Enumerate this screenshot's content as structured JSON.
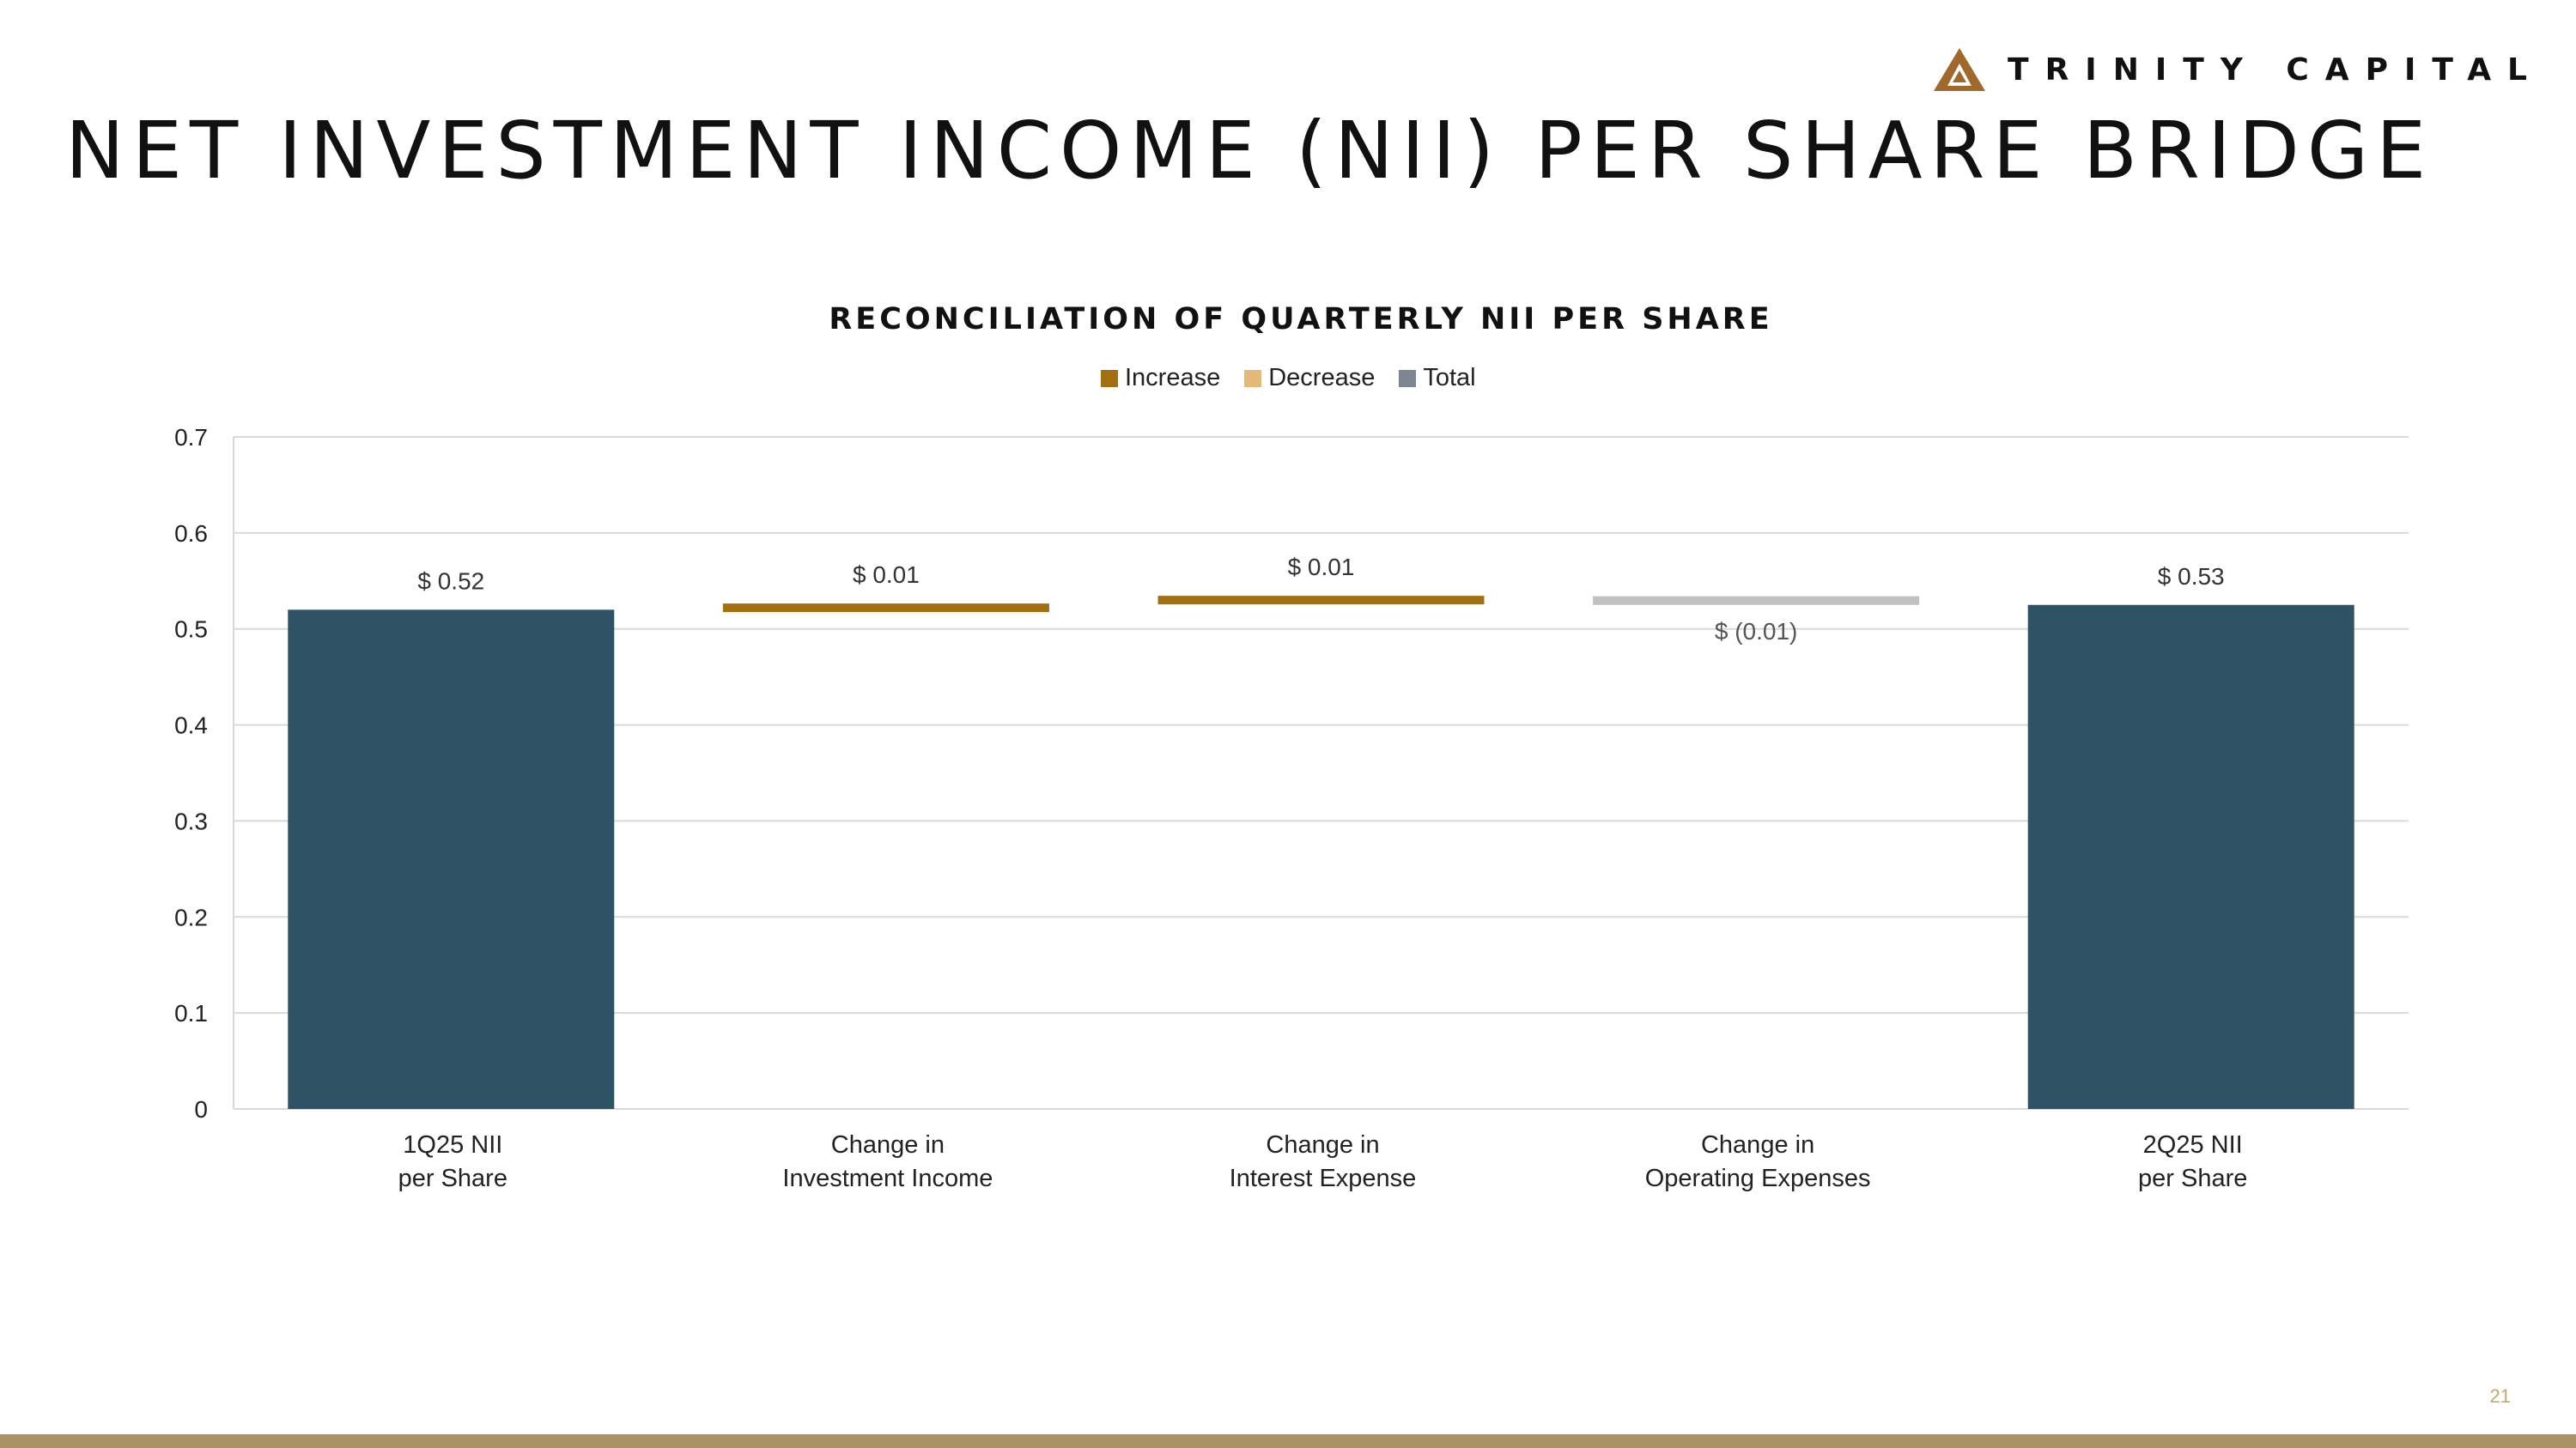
{
  "brand": {
    "name": "TRINITY CAPITAL",
    "mark_color": "#a0692b"
  },
  "page_title": "NET INVESTMENT INCOME (NII) PER SHARE BRIDGE",
  "page_number": "21",
  "colors": {
    "increase": "#a37011",
    "decrease": "#c0c0c0",
    "total": "#2d5364",
    "grid": "#d9d9d9",
    "footer": "#a99166"
  },
  "legend": [
    {
      "label": "Increase",
      "color": "#a37011"
    },
    {
      "label": "Decrease",
      "color": "#e3b879"
    },
    {
      "label": "Total",
      "color": "#7c8590"
    }
  ],
  "chart_data": {
    "type": "bar",
    "subtype": "waterfall",
    "title": "RECONCILIATION OF QUARTERLY NII PER SHARE",
    "xlabel": "",
    "ylabel": "",
    "ylim": [
      0,
      0.7
    ],
    "yticks": [
      "0",
      "0.1",
      "0.2",
      "0.3",
      "0.4",
      "0.5",
      "0.6",
      "0.7"
    ],
    "grid": true,
    "legend_position": "top-center",
    "categories": [
      [
        "1Q25 NII",
        "per Share"
      ],
      [
        "Change in",
        "Investment Income"
      ],
      [
        "Change in",
        "Interest Expense"
      ],
      [
        "Change in",
        "Operating Expenses"
      ],
      [
        "2Q25 NII",
        "per Share"
      ]
    ],
    "bars": [
      {
        "kind": "total",
        "start": 0,
        "end": 0.52,
        "label": "$ 0.52"
      },
      {
        "kind": "increase",
        "start": 0.518,
        "end": 0.526,
        "label": "$ 0.01"
      },
      {
        "kind": "increase",
        "start": 0.526,
        "end": 0.534,
        "label": "$ 0.01"
      },
      {
        "kind": "decrease",
        "start": 0.534,
        "end": 0.525,
        "label": "$ (0.01)"
      },
      {
        "kind": "total",
        "start": 0,
        "end": 0.525,
        "label": "$ 0.53"
      }
    ]
  }
}
